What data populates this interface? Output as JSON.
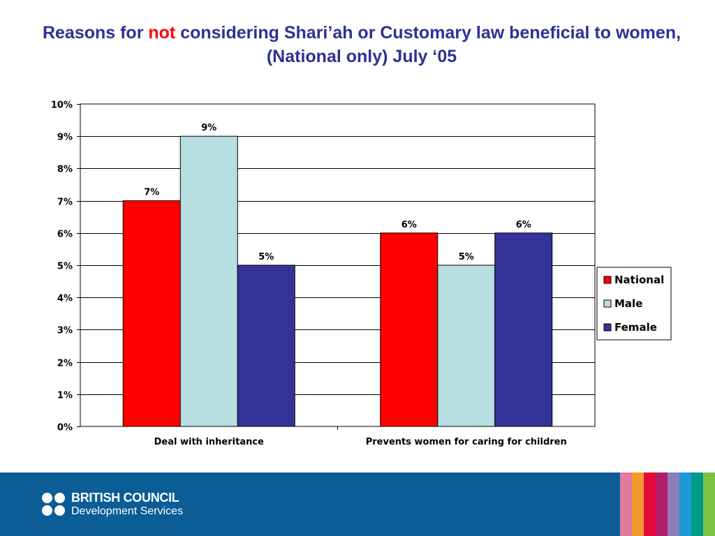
{
  "title": {
    "part1": "Reasons for ",
    "highlight": "not",
    "part2": " considering Shari’ah or Customary law beneficial to women, (National only) July ‘05"
  },
  "chart_data": {
    "type": "bar",
    "categories": [
      "Deal with inheritance",
      "Prevents women for caring for children"
    ],
    "series": [
      {
        "name": "National",
        "values": [
          7,
          6
        ],
        "labels": [
          "7%",
          "6%"
        ],
        "color": "#FF0000"
      },
      {
        "name": "Male",
        "values": [
          9,
          5
        ],
        "labels": [
          "9%",
          "5%"
        ],
        "color": "#B7DEE1"
      },
      {
        "name": "Female",
        "values": [
          5,
          6
        ],
        "labels": [
          "5%",
          "6%"
        ],
        "color": "#333399"
      }
    ],
    "ylim": [
      0,
      10
    ],
    "yticks": [
      "0%",
      "1%",
      "2%",
      "3%",
      "4%",
      "5%",
      "6%",
      "7%",
      "8%",
      "9%",
      "10%"
    ],
    "grid": true,
    "legend": "right"
  },
  "footer": {
    "brand_line1": "BRITISH COUNCIL",
    "brand_line2": "Development Services",
    "background": "#0A5D96",
    "stripe_colors": [
      "#E07BA0",
      "#F39A2C",
      "#E30B3A",
      "#B01E6B",
      "#8E7DB8",
      "#1C9AD6",
      "#009A8B",
      "#7DC242"
    ]
  }
}
